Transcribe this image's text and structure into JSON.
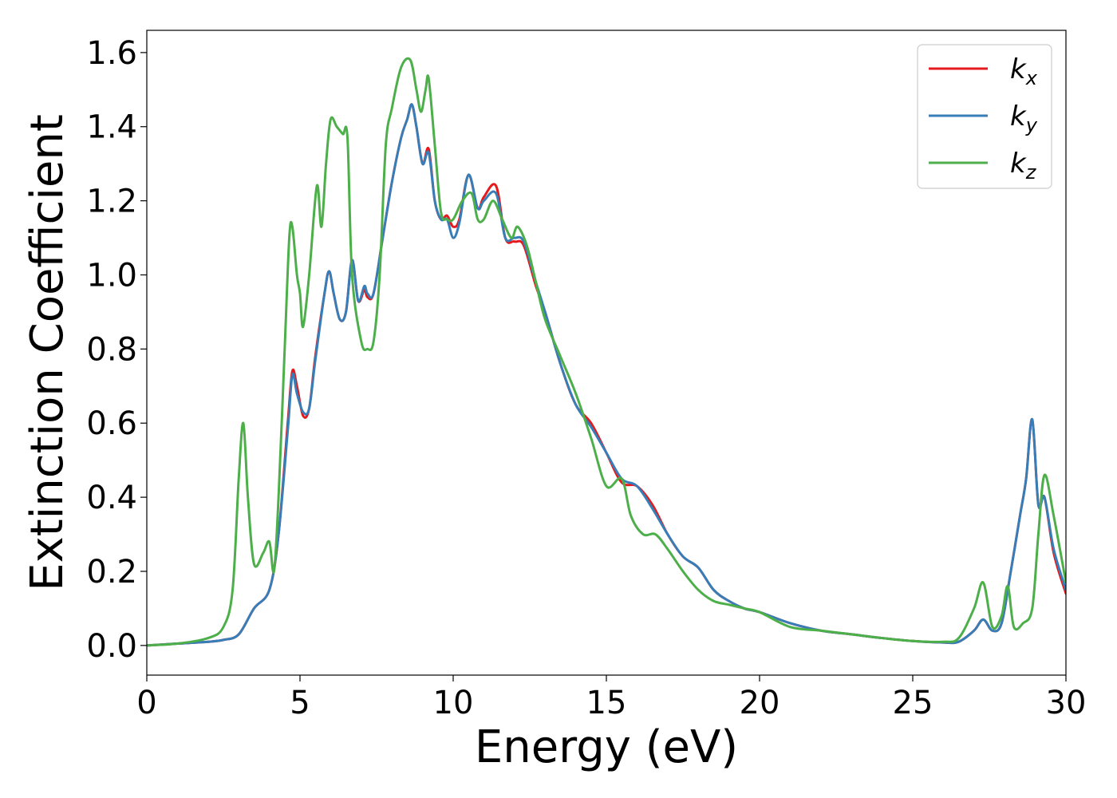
{
  "chart_data": {
    "type": "line",
    "title": "",
    "xlabel": "Energy (eV)",
    "ylabel": "Extinction Coefficient",
    "xlim": [
      0,
      30
    ],
    "ylim": [
      -0.08,
      1.66
    ],
    "xticks": [
      "0",
      "5",
      "10",
      "15",
      "20",
      "25",
      "30"
    ],
    "xtick_values": [
      0,
      5,
      10,
      15,
      20,
      25,
      30
    ],
    "yticks": [
      "0.0",
      "0.2",
      "0.4",
      "0.6",
      "0.8",
      "1.0",
      "1.2",
      "1.4",
      "1.6"
    ],
    "ytick_values": [
      0,
      0.2,
      0.4,
      0.6,
      0.8,
      1.0,
      1.2,
      1.4,
      1.6
    ],
    "grid": false,
    "legend_position": "top-right",
    "series": [
      {
        "name": "k_x",
        "label_base": "k",
        "label_sub": "x",
        "color": "#e41a1c",
        "x": [
          0,
          1,
          2,
          2.5,
          3,
          3.5,
          4,
          4.3,
          4.6,
          4.75,
          4.9,
          5.1,
          5.3,
          5.5,
          5.8,
          5.95,
          6.1,
          6.3,
          6.5,
          6.7,
          6.9,
          7.1,
          7.2,
          7.4,
          7.7,
          8.0,
          8.3,
          8.5,
          8.65,
          8.8,
          9.0,
          9.2,
          9.4,
          9.6,
          9.8,
          10.0,
          10.2,
          10.5,
          10.8,
          11.0,
          11.4,
          11.7,
          12.0,
          12.3,
          12.7,
          13.0,
          13.5,
          14.0,
          14.5,
          15.0,
          15.5,
          16.0,
          16.5,
          17.0,
          17.5,
          18.0,
          18.5,
          19.0,
          19.5,
          20.0,
          21.0,
          22.0,
          23.0,
          24.0,
          25.0,
          26.0,
          26.5,
          27.0,
          27.3,
          27.6,
          27.9,
          28.2,
          28.5,
          28.7,
          28.9,
          29.1,
          29.3,
          29.6,
          30.0
        ],
        "y": [
          0.0,
          0.005,
          0.01,
          0.015,
          0.03,
          0.1,
          0.15,
          0.3,
          0.6,
          0.74,
          0.7,
          0.62,
          0.64,
          0.78,
          0.95,
          1.01,
          0.95,
          0.88,
          0.9,
          1.04,
          0.93,
          0.96,
          0.94,
          0.95,
          1.1,
          1.25,
          1.37,
          1.42,
          1.46,
          1.4,
          1.3,
          1.34,
          1.2,
          1.15,
          1.16,
          1.13,
          1.15,
          1.27,
          1.18,
          1.21,
          1.24,
          1.1,
          1.09,
          1.08,
          0.97,
          0.9,
          0.76,
          0.65,
          0.6,
          0.52,
          0.44,
          0.43,
          0.38,
          0.3,
          0.24,
          0.21,
          0.15,
          0.12,
          0.1,
          0.09,
          0.06,
          0.04,
          0.03,
          0.02,
          0.012,
          0.008,
          0.01,
          0.04,
          0.07,
          0.04,
          0.06,
          0.2,
          0.35,
          0.45,
          0.61,
          0.38,
          0.4,
          0.25,
          0.14
        ]
      },
      {
        "name": "k_y",
        "label_base": "k",
        "label_sub": "y",
        "color": "#377eb8",
        "x": [
          0,
          1,
          2,
          2.5,
          3,
          3.5,
          4,
          4.3,
          4.6,
          4.75,
          4.9,
          5.1,
          5.3,
          5.5,
          5.8,
          5.95,
          6.1,
          6.3,
          6.5,
          6.7,
          6.9,
          7.1,
          7.2,
          7.4,
          7.7,
          8.0,
          8.3,
          8.5,
          8.65,
          8.8,
          9.0,
          9.2,
          9.4,
          9.6,
          9.8,
          10.0,
          10.2,
          10.5,
          10.8,
          11.0,
          11.4,
          11.7,
          12.0,
          12.3,
          12.7,
          13.0,
          13.5,
          14.0,
          14.5,
          15.0,
          15.5,
          16.0,
          16.5,
          17.0,
          17.5,
          18.0,
          18.5,
          19.0,
          19.5,
          20.0,
          21.0,
          22.0,
          23.0,
          24.0,
          25.0,
          26.0,
          26.5,
          27.0,
          27.3,
          27.6,
          27.9,
          28.2,
          28.5,
          28.7,
          28.9,
          29.1,
          29.3,
          29.6,
          30.0
        ],
        "y": [
          0.0,
          0.005,
          0.01,
          0.015,
          0.03,
          0.1,
          0.15,
          0.3,
          0.58,
          0.73,
          0.68,
          0.63,
          0.64,
          0.77,
          0.95,
          1.01,
          0.95,
          0.88,
          0.9,
          1.04,
          0.93,
          0.97,
          0.95,
          0.95,
          1.1,
          1.25,
          1.37,
          1.42,
          1.46,
          1.4,
          1.3,
          1.33,
          1.2,
          1.15,
          1.15,
          1.1,
          1.14,
          1.27,
          1.18,
          1.2,
          1.22,
          1.1,
          1.1,
          1.09,
          0.98,
          0.9,
          0.76,
          0.65,
          0.59,
          0.52,
          0.45,
          0.43,
          0.37,
          0.3,
          0.24,
          0.21,
          0.15,
          0.12,
          0.1,
          0.09,
          0.06,
          0.04,
          0.03,
          0.02,
          0.012,
          0.008,
          0.01,
          0.04,
          0.07,
          0.04,
          0.06,
          0.2,
          0.35,
          0.45,
          0.61,
          0.38,
          0.4,
          0.26,
          0.15
        ]
      },
      {
        "name": "k_z",
        "label_base": "k",
        "label_sub": "z",
        "color": "#4daf4a",
        "x": [
          0,
          1,
          2,
          2.5,
          2.8,
          3.0,
          3.15,
          3.3,
          3.5,
          3.8,
          4.0,
          4.15,
          4.3,
          4.5,
          4.65,
          4.75,
          4.9,
          5.0,
          5.1,
          5.3,
          5.55,
          5.7,
          5.85,
          6.0,
          6.2,
          6.4,
          6.55,
          6.7,
          7.0,
          7.2,
          7.4,
          7.6,
          7.8,
          8.0,
          8.3,
          8.6,
          8.8,
          8.95,
          9.1,
          9.2,
          9.4,
          9.6,
          9.8,
          10.0,
          10.3,
          10.6,
          10.8,
          11.0,
          11.3,
          11.6,
          11.9,
          12.1,
          12.4,
          12.7,
          13.0,
          13.5,
          14.0,
          14.5,
          15.0,
          15.5,
          15.8,
          16.2,
          16.6,
          17.0,
          17.5,
          18.0,
          18.5,
          19.0,
          19.5,
          20.0,
          21.0,
          22.0,
          23.0,
          24.0,
          25.0,
          26.0,
          26.5,
          27.0,
          27.3,
          27.6,
          27.9,
          28.1,
          28.3,
          28.6,
          28.9,
          29.1,
          29.3,
          29.6,
          30.0
        ],
        "y": [
          0.0,
          0.005,
          0.02,
          0.05,
          0.15,
          0.45,
          0.6,
          0.4,
          0.22,
          0.25,
          0.28,
          0.2,
          0.4,
          0.8,
          1.1,
          1.13,
          1.0,
          0.95,
          0.86,
          1.0,
          1.24,
          1.13,
          1.3,
          1.42,
          1.4,
          1.38,
          1.37,
          1.0,
          0.82,
          0.8,
          0.82,
          1.0,
          1.35,
          1.45,
          1.56,
          1.58,
          1.5,
          1.44,
          1.5,
          1.53,
          1.35,
          1.17,
          1.15,
          1.15,
          1.2,
          1.22,
          1.15,
          1.15,
          1.2,
          1.15,
          1.1,
          1.13,
          1.08,
          0.98,
          0.88,
          0.78,
          0.68,
          0.56,
          0.43,
          0.45,
          0.35,
          0.3,
          0.3,
          0.26,
          0.2,
          0.15,
          0.12,
          0.11,
          0.1,
          0.09,
          0.05,
          0.04,
          0.03,
          0.02,
          0.012,
          0.01,
          0.02,
          0.1,
          0.17,
          0.05,
          0.08,
          0.16,
          0.05,
          0.06,
          0.1,
          0.3,
          0.46,
          0.35,
          0.17
        ]
      }
    ]
  }
}
